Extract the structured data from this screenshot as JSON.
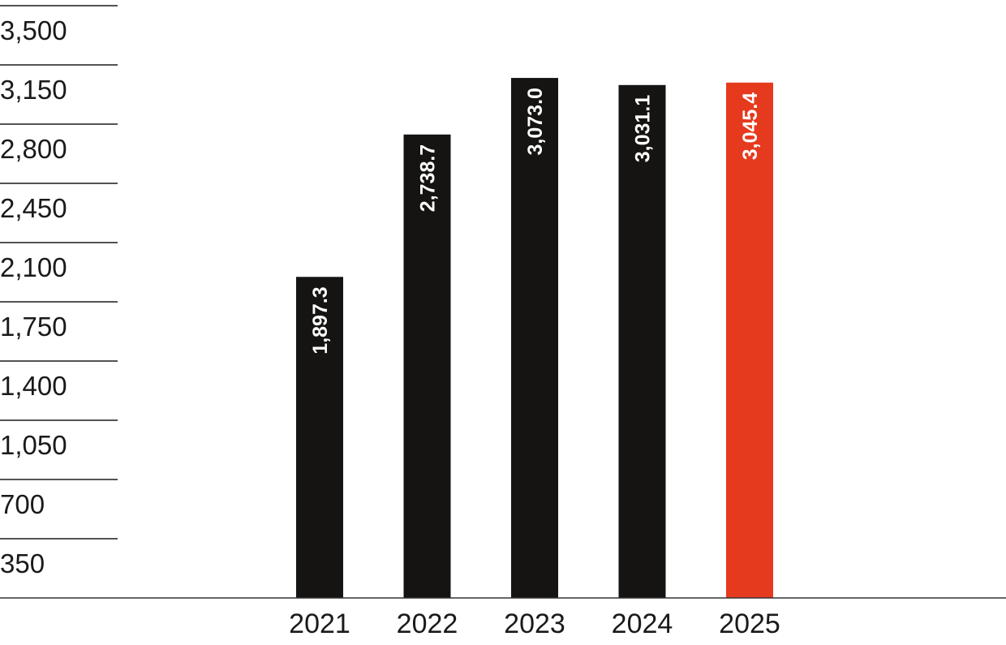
{
  "chart_data": {
    "type": "bar",
    "categories": [
      "2021",
      "2022",
      "2023",
      "2024",
      "2025"
    ],
    "values": [
      1897.3,
      2738.7,
      3073.0,
      3031.1,
      3045.4
    ],
    "value_labels": [
      "1,897.3",
      "2,738.7",
      "3,073.0",
      "3,031.1",
      "3,045.4"
    ],
    "yticks": [
      350,
      700,
      1050,
      1400,
      1750,
      2100,
      2450,
      2800,
      3150,
      3500
    ],
    "ytick_labels": [
      "350",
      "700",
      "1,050",
      "1,400",
      "1,750",
      "2,100",
      "2,450",
      "2,800",
      "3,150",
      "3,500"
    ],
    "ylim": [
      0,
      3500
    ],
    "grid": true,
    "bar_colors": [
      "#151412",
      "#151412",
      "#151412",
      "#151412",
      "#e63a1e"
    ],
    "grid_color": "#1a1a1a",
    "title": "",
    "xlabel": "",
    "ylabel": ""
  }
}
